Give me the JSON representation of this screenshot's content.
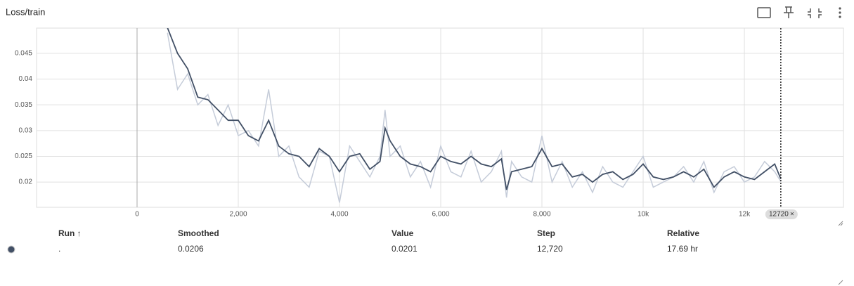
{
  "header": {
    "title": "Loss/train"
  },
  "chart_data": {
    "type": "line",
    "x": [
      600,
      800,
      1000,
      1200,
      1400,
      1600,
      1800,
      2000,
      2200,
      2400,
      2600,
      2800,
      3000,
      3200,
      3400,
      3600,
      3800,
      4000,
      4200,
      4400,
      4600,
      4800,
      4900,
      5000,
      5200,
      5400,
      5600,
      5800,
      6000,
      6200,
      6400,
      6600,
      6800,
      7000,
      7200,
      7300,
      7400,
      7600,
      7800,
      8000,
      8200,
      8400,
      8600,
      8800,
      9000,
      9200,
      9400,
      9600,
      9800,
      10000,
      10200,
      10400,
      10600,
      10800,
      11000,
      11200,
      11400,
      11600,
      11800,
      12000,
      12200,
      12400,
      12600,
      12720
    ],
    "series": [
      {
        "color": "#c5ccd9",
        "values": [
          0.049,
          0.038,
          0.041,
          0.035,
          0.037,
          0.031,
          0.035,
          0.029,
          0.03,
          0.027,
          0.038,
          0.025,
          0.027,
          0.021,
          0.019,
          0.026,
          0.025,
          0.016,
          0.027,
          0.024,
          0.021,
          0.025,
          0.034,
          0.025,
          0.027,
          0.021,
          0.024,
          0.019,
          0.027,
          0.022,
          0.021,
          0.026,
          0.02,
          0.022,
          0.026,
          0.017,
          0.024,
          0.021,
          0.02,
          0.029,
          0.02,
          0.024,
          0.019,
          0.022,
          0.018,
          0.023,
          0.02,
          0.019,
          0.022,
          0.025,
          0.019,
          0.02,
          0.021,
          0.023,
          0.02,
          0.024,
          0.018,
          0.022,
          0.023,
          0.02,
          0.021,
          0.024,
          0.022,
          0.0201
        ]
      },
      {
        "color": "#425066",
        "values": [
          0.05,
          0.045,
          0.042,
          0.0365,
          0.036,
          0.034,
          0.032,
          0.032,
          0.029,
          0.028,
          0.032,
          0.027,
          0.0255,
          0.025,
          0.023,
          0.0265,
          0.025,
          0.022,
          0.025,
          0.0255,
          0.0225,
          0.024,
          0.0305,
          0.028,
          0.025,
          0.0235,
          0.023,
          0.022,
          0.025,
          0.024,
          0.0235,
          0.025,
          0.0235,
          0.023,
          0.0245,
          0.0185,
          0.022,
          0.0225,
          0.023,
          0.0265,
          0.023,
          0.0235,
          0.021,
          0.0215,
          0.02,
          0.0215,
          0.022,
          0.0205,
          0.0215,
          0.0235,
          0.021,
          0.0205,
          0.021,
          0.022,
          0.021,
          0.0225,
          0.019,
          0.021,
          0.022,
          0.021,
          0.0205,
          0.022,
          0.0235,
          0.0206
        ]
      }
    ],
    "xlim": [
      -1986,
      13958
    ],
    "xticks": [
      0,
      {
        "value": 2000,
        "label": "2,000"
      },
      {
        "value": 4000,
        "label": "4,000"
      },
      {
        "value": 6000,
        "label": "6,000"
      },
      {
        "value": 8000,
        "label": "8,000"
      },
      {
        "value": 10000,
        "label": "10k"
      },
      {
        "value": 12000,
        "label": "12k"
      }
    ],
    "ylim": [
      0.0151,
      0.0499
    ],
    "yticks": [
      0.02,
      0.025,
      0.03,
      0.035,
      0.04,
      0.045
    ],
    "grid": true,
    "cursor_step": 12720
  },
  "table": {
    "headers": [
      "Run ↑",
      "Smoothed",
      "Value",
      "Step",
      "Relative"
    ],
    "rows": [
      [
        ".",
        "0.0206",
        "0.0201",
        "12,720",
        "17.69 hr"
      ]
    ]
  }
}
